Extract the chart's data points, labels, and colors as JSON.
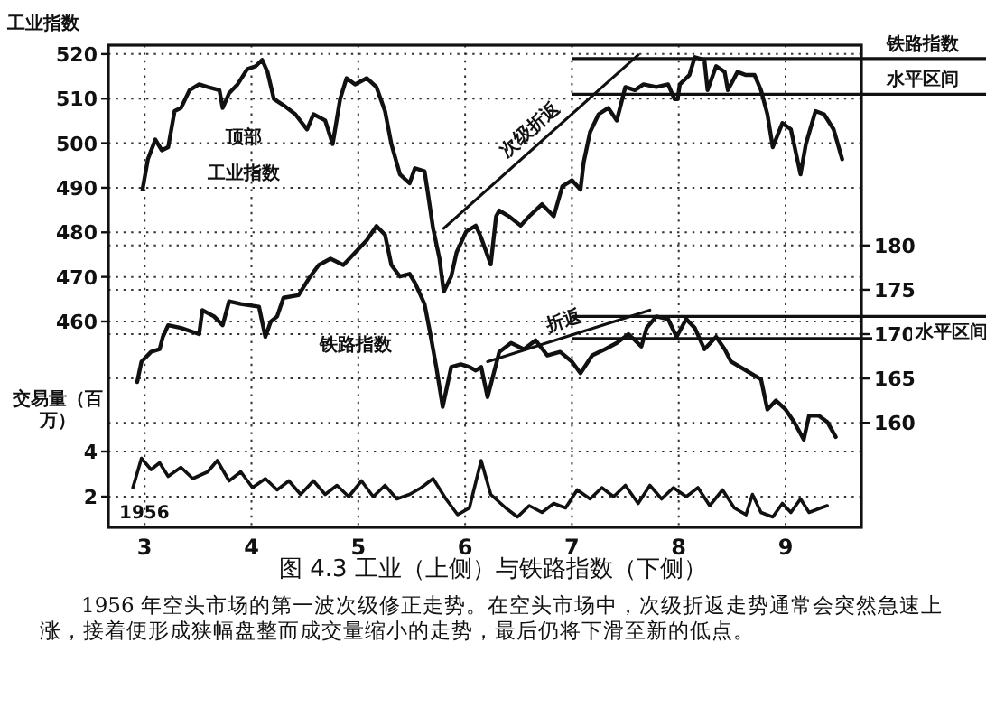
{
  "chart_data": {
    "type": "line",
    "title": "图 4.3 工业（上侧）与铁路指数（下侧）",
    "ylabel": "工业指数",
    "y3label": "交易量（百万）",
    "xlim": [
      2.66,
      9.71
    ],
    "xticks": [
      3,
      4,
      5,
      6,
      7,
      8,
      9
    ],
    "ylim": [
      413.8,
      522
    ],
    "yticks": [
      460,
      470,
      480,
      490,
      500,
      510,
      520
    ],
    "y2lim": [
      148.2,
      202.6
    ],
    "y2ticks": [
      160,
      165,
      170,
      175,
      180
    ],
    "y3lim": [
      0.64,
      22
    ],
    "y3ticks": [
      2,
      4
    ],
    "grid": true,
    "legend": false,
    "line_style": "solid",
    "marker": "none",
    "series": [
      {
        "axis": "y",
        "color": "#111111",
        "x": [
          2.98,
          3.03,
          3.1,
          3.16,
          3.22,
          3.28,
          3.34,
          3.42,
          3.51,
          3.59,
          3.7,
          3.73,
          3.79,
          3.87,
          3.96,
          4.04,
          4.1,
          4.15,
          4.21,
          4.3,
          4.41,
          4.52,
          4.58,
          4.69,
          4.76,
          4.83,
          4.89,
          4.97,
          5.08,
          5.17,
          5.25,
          5.31,
          5.39,
          5.48,
          5.53,
          5.62,
          5.65,
          5.7,
          5.76,
          5.8,
          5.87,
          5.92,
          6.01,
          6.1,
          6.15,
          6.24,
          6.29,
          6.32,
          6.41,
          6.52,
          6.6,
          6.72,
          6.83,
          6.91,
          7.0,
          7.08,
          7.11,
          7.17,
          7.25,
          7.34,
          7.42,
          7.5,
          7.59,
          7.67,
          7.79,
          7.9,
          7.96,
          7.99,
          8.01,
          8.1,
          8.15,
          8.24,
          8.27,
          8.35,
          8.43,
          8.46,
          8.55,
          8.63,
          8.71,
          8.77,
          8.83,
          8.88,
          8.97,
          9.05,
          9.14,
          9.19,
          9.28,
          9.36,
          9.45,
          9.53
        ],
        "values": [
          489.6,
          496.4,
          500.8,
          498.4,
          499.1,
          507.2,
          507.9,
          511.9,
          513.2,
          512.6,
          511.9,
          507.9,
          511.2,
          513.2,
          516.6,
          517.3,
          518.7,
          516.0,
          509.9,
          508.5,
          506.5,
          503.1,
          506.5,
          505.1,
          499.8,
          509.9,
          514.6,
          513.2,
          514.6,
          512.6,
          507.2,
          499.8,
          493.0,
          491.0,
          494.4,
          493.7,
          489.0,
          480.9,
          474.1,
          466.7,
          470.1,
          475.5,
          480.2,
          481.5,
          478.8,
          472.8,
          483.6,
          484.9,
          483.6,
          481.5,
          483.6,
          486.3,
          483.6,
          490.3,
          491.7,
          489.6,
          495.7,
          502.5,
          506.5,
          507.9,
          505.1,
          512.6,
          511.9,
          513.2,
          512.6,
          513.2,
          509.9,
          509.9,
          513.2,
          515.3,
          519.3,
          518.7,
          511.9,
          517.3,
          516.0,
          511.9,
          516.0,
          515.3,
          515.3,
          511.9,
          506.5,
          499.1,
          504.5,
          503.1,
          493.0,
          499.8,
          507.2,
          506.5,
          503.1,
          496.4
        ]
      },
      {
        "axis": "y2",
        "color": "#111111",
        "x": [
          2.93,
          2.97,
          3.06,
          3.14,
          3.17,
          3.22,
          3.34,
          3.51,
          3.54,
          3.65,
          3.73,
          3.79,
          3.9,
          4.07,
          4.13,
          4.18,
          4.24,
          4.3,
          4.44,
          4.55,
          4.63,
          4.74,
          4.86,
          4.97,
          5.08,
          5.17,
          5.25,
          5.31,
          5.39,
          5.48,
          5.53,
          5.62,
          5.67,
          5.73,
          5.79,
          5.87,
          5.96,
          6.04,
          6.1,
          6.15,
          6.21,
          6.32,
          6.43,
          6.55,
          6.66,
          6.77,
          6.89,
          7.0,
          7.08,
          7.19,
          7.31,
          7.42,
          7.53,
          7.65,
          7.7,
          7.79,
          7.9,
          7.98,
          8.07,
          8.15,
          8.24,
          8.35,
          8.43,
          8.49,
          8.63,
          8.77,
          8.83,
          8.91,
          9.0,
          9.08,
          9.17,
          9.22,
          9.31,
          9.39,
          9.47
        ],
        "values": [
          164.6,
          166.9,
          168.0,
          168.3,
          169.7,
          171.0,
          170.7,
          170.0,
          172.7,
          172.0,
          171.0,
          173.7,
          173.4,
          173.1,
          169.7,
          171.4,
          172.0,
          174.1,
          174.4,
          176.5,
          177.8,
          178.5,
          177.8,
          179.2,
          180.6,
          182.2,
          181.2,
          177.8,
          176.5,
          176.8,
          175.8,
          173.4,
          170.3,
          166.3,
          161.8,
          166.3,
          166.6,
          166.3,
          165.9,
          166.3,
          162.9,
          168.0,
          169.0,
          168.3,
          169.3,
          167.6,
          168.0,
          166.9,
          165.6,
          167.6,
          168.3,
          169.0,
          170.0,
          168.6,
          170.7,
          172.0,
          171.7,
          169.7,
          171.7,
          170.7,
          168.3,
          169.7,
          168.3,
          166.9,
          165.9,
          164.9,
          161.5,
          162.5,
          161.5,
          160.1,
          158.1,
          160.8,
          160.8,
          160.1,
          158.4
        ]
      },
      {
        "axis": "y3",
        "color": "#111111",
        "x": [
          2.89,
          2.97,
          3.06,
          3.14,
          3.22,
          3.34,
          3.45,
          3.59,
          3.68,
          3.79,
          3.9,
          4.01,
          4.13,
          4.24,
          4.35,
          4.46,
          4.58,
          4.69,
          4.8,
          4.91,
          5.03,
          5.14,
          5.25,
          5.36,
          5.48,
          5.59,
          5.7,
          5.82,
          5.93,
          6.04,
          6.15,
          6.24,
          6.38,
          6.49,
          6.6,
          6.72,
          6.83,
          6.94,
          7.05,
          7.17,
          7.28,
          7.39,
          7.5,
          7.62,
          7.73,
          7.84,
          7.95,
          8.07,
          8.18,
          8.29,
          8.41,
          8.52,
          8.63,
          8.69,
          8.77,
          8.88,
          8.97,
          9.05,
          9.14,
          9.22,
          9.33,
          9.39
        ],
        "values": [
          2.4,
          3.7,
          3.2,
          3.5,
          2.9,
          3.3,
          2.8,
          3.1,
          3.6,
          2.7,
          3.1,
          2.4,
          2.8,
          2.3,
          2.7,
          2.1,
          2.7,
          2.1,
          2.5,
          2.0,
          2.7,
          2.0,
          2.5,
          1.9,
          2.1,
          2.4,
          2.8,
          1.9,
          1.2,
          1.5,
          3.6,
          2.1,
          1.5,
          1.1,
          1.6,
          1.3,
          1.7,
          1.5,
          2.3,
          1.9,
          2.4,
          2.0,
          2.5,
          1.7,
          2.5,
          1.9,
          2.4,
          2.0,
          2.4,
          1.6,
          2.3,
          1.5,
          1.2,
          2.1,
          1.3,
          1.1,
          1.7,
          1.3,
          1.9,
          1.3,
          1.5,
          1.6
        ]
      },
      {
        "axis": "y",
        "name": "次级折返",
        "color": "#111111",
        "x": [
          5.8,
          7.62
        ],
        "values": [
          480.9,
          519.8
        ]
      },
      {
        "axis": "y2",
        "name": "折返",
        "color": "#111111",
        "x": [
          6.21,
          7.73
        ],
        "values": [
          166.9,
          172.7
        ]
      }
    ],
    "ref_lines": [
      {
        "axis": "y",
        "value": 519,
        "label": "铁路指数"
      },
      {
        "axis": "y",
        "value": 511,
        "label": "水平区间"
      },
      {
        "axis": "y2",
        "value": 172,
        "label": "水平区间"
      },
      {
        "axis": "y2",
        "value": 169.5,
        "label": null
      }
    ],
    "annotations": [
      "顶部",
      "工业指数",
      "铁路指数",
      "1956",
      "1956 年空头市场的第一波次级修正走势。在空头市场中，次级折返走势通常会突然急速上涨，接着便形成狭幅盘整而成交量缩小的走势，最后仍将下滑至新的低点。"
    ]
  }
}
